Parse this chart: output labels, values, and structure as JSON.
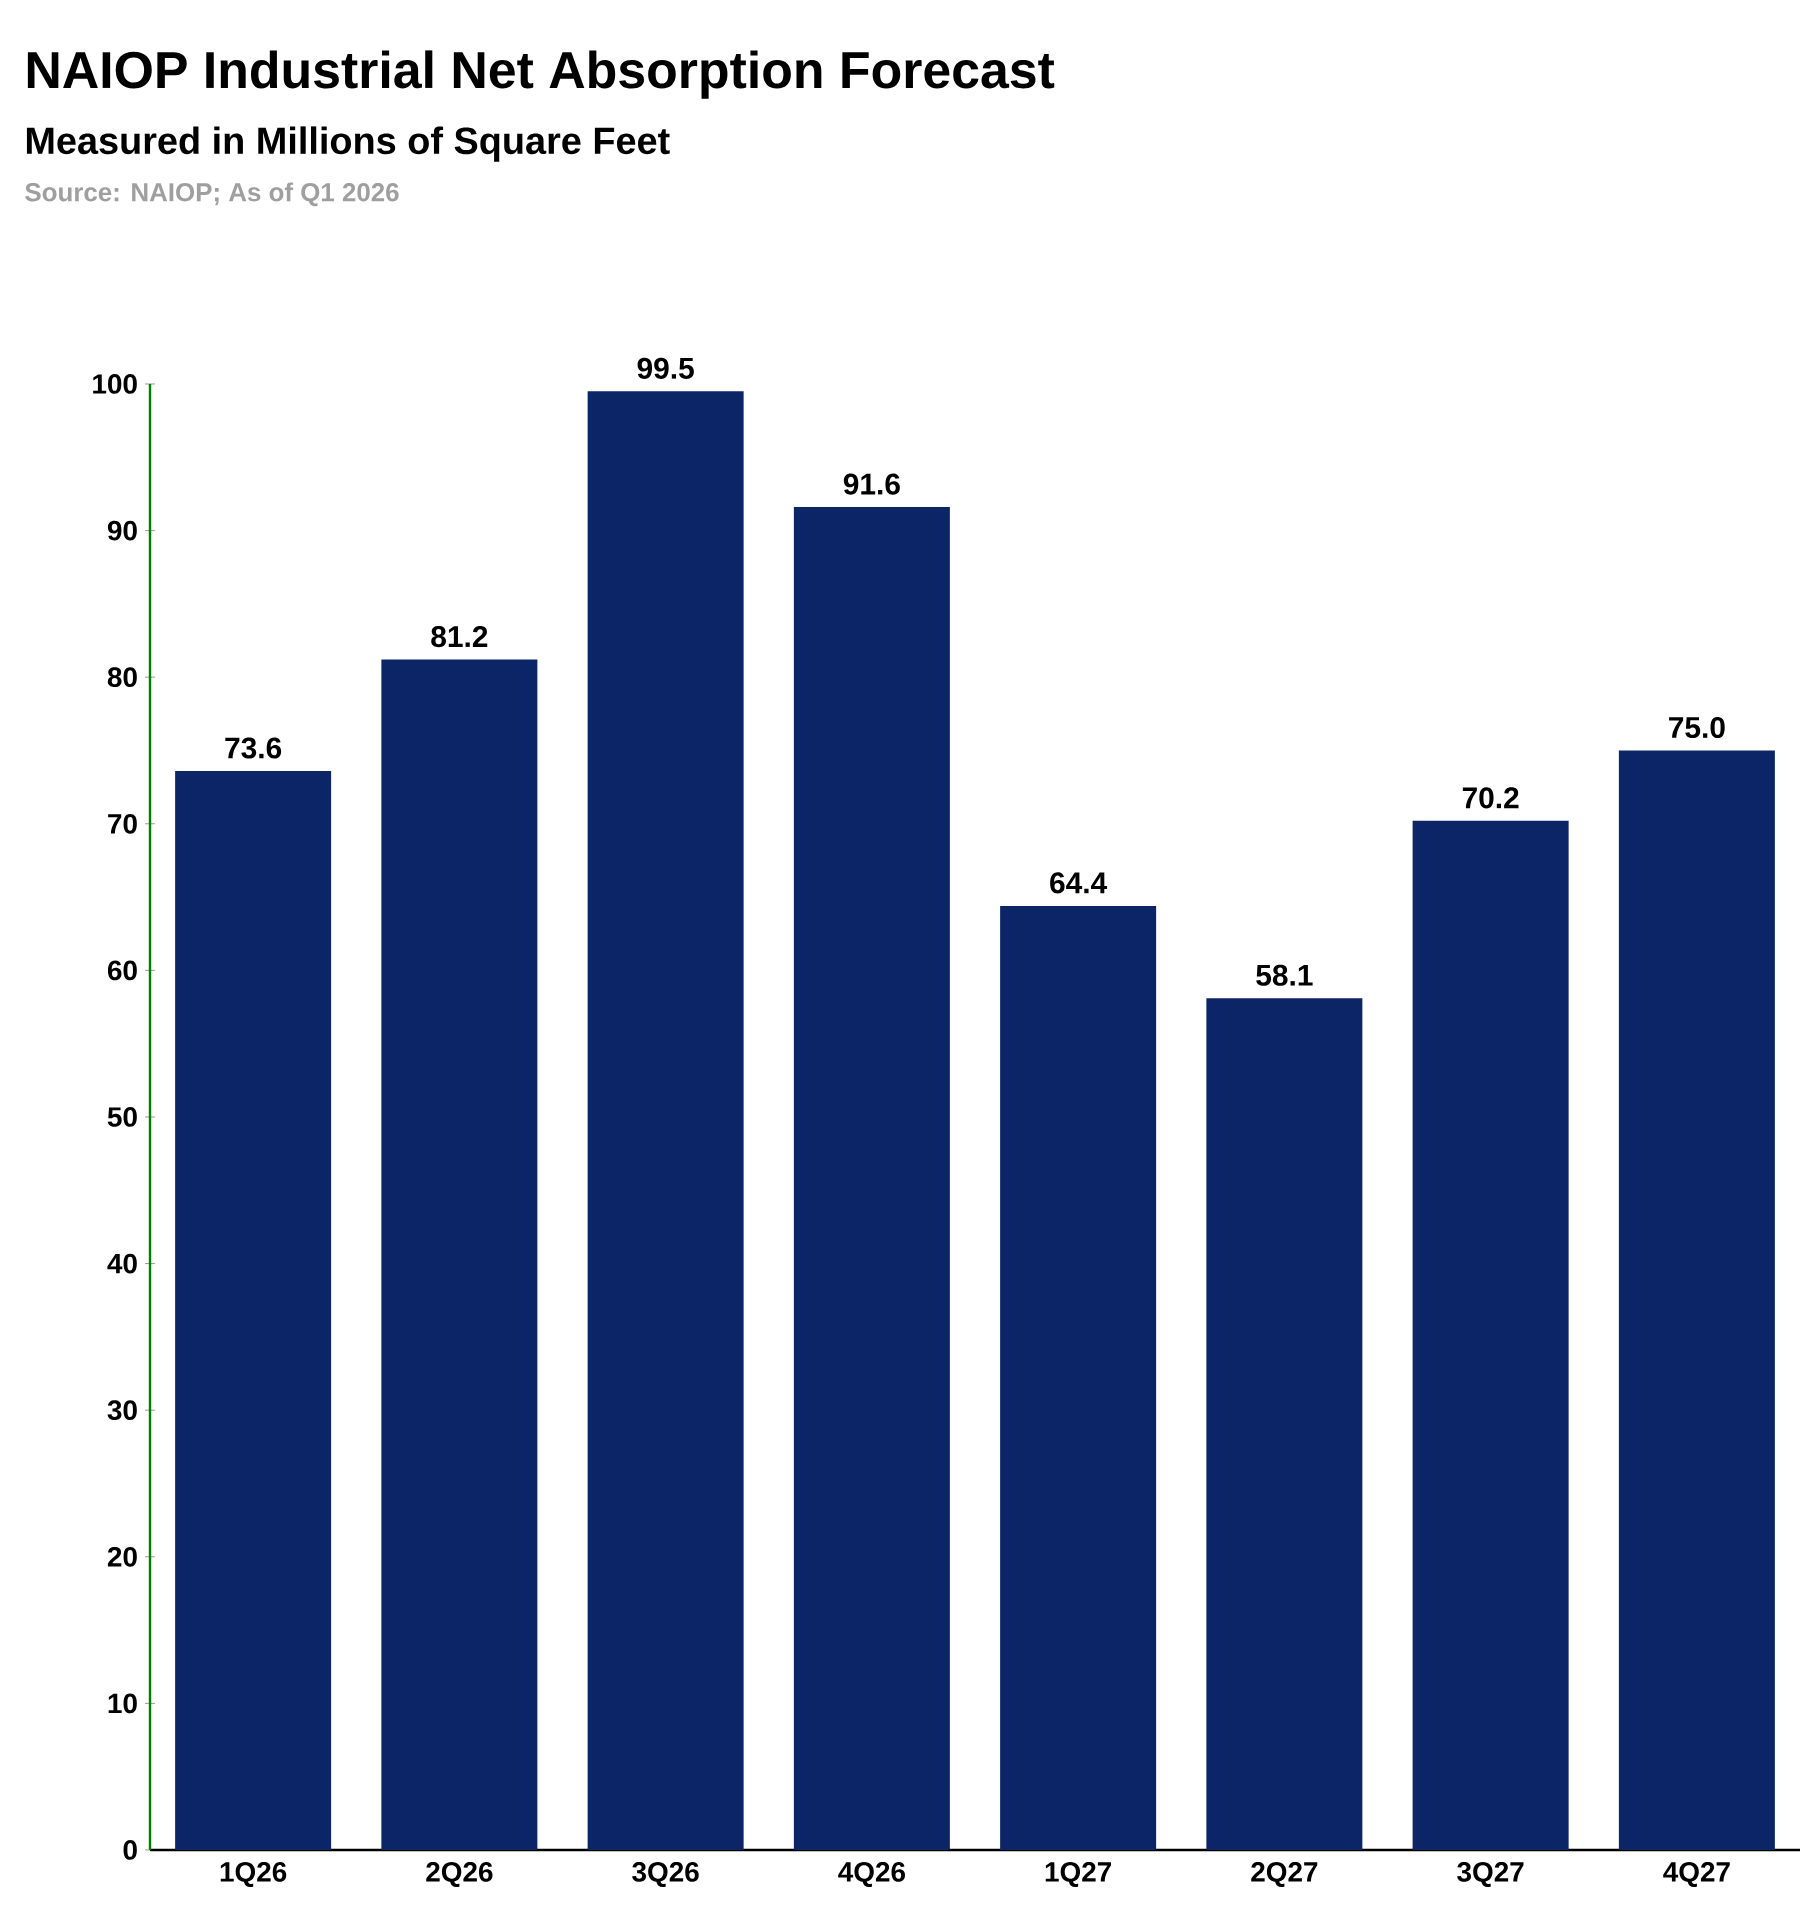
{
  "chart_data": {
    "type": "bar",
    "title": "NAIOP Industrial Net Absorption Forecast",
    "subtitle": "Measured in Millions of Square Feet",
    "annotations": [
      "Source: NAIOP; As of Q1 2026"
    ],
    "categories": [
      "1Q26",
      "2Q26",
      "3Q26",
      "4Q26",
      "1Q27",
      "2Q27",
      "3Q27",
      "4Q27"
    ],
    "values": [
      73.6,
      81.2,
      99.5,
      91.6,
      64.4,
      58.1,
      70.2,
      75.0
    ],
    "color": "#0c2566",
    "ylim": [
      0,
      100
    ],
    "yticks": [
      0,
      10,
      20,
      30,
      40,
      50,
      60,
      70,
      80,
      90,
      100
    ],
    "value_labels": [
      "73.6",
      "81.2",
      "99.5",
      "91.6",
      "64.4",
      "58.1",
      "70.2",
      "75.0"
    ],
    "grid": false
  }
}
